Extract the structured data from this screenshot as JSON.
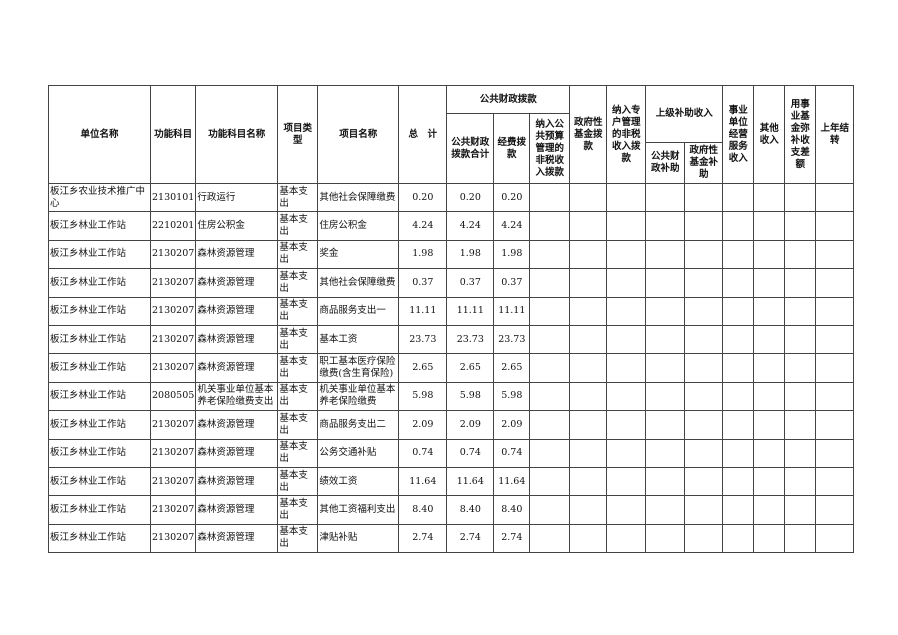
{
  "headers": {
    "unit_name": "单位名称",
    "func_code": "功能科目",
    "func_name": "功能科目名称",
    "item_type": "项目类型",
    "item_name": "项目名称",
    "total": "总　计",
    "public_finance": "公共财政拨款",
    "public_finance_total": "公共财政拨款合计",
    "funding": "经费拨款",
    "non_tax_budget": "纳入公共预算管理的非税收入拨款",
    "gov_fund": "政府性基金拨款",
    "special_non_tax": "纳入专户管理的非税收入拨款",
    "superior_subsidy": "上级补助收入",
    "superior_public": "公共财政补助",
    "superior_gov_fund": "政府性基金补助",
    "business_income": "事业单位经营服务收入",
    "other_income": "其他收入",
    "fund_balance": "用事业基金弥补收支差额",
    "last_year": "上年结转"
  },
  "rows": [
    {
      "unit": "板江乡农业技术推广中心",
      "code": "2130101",
      "func": "行政运行",
      "type": "基本支出",
      "item": "其他社会保障缴费",
      "total": "0.20",
      "pf_total": "0.20",
      "funding": "0.20"
    },
    {
      "unit": "板江乡林业工作站",
      "code": "2210201",
      "func": "住房公积金",
      "type": "基本支出",
      "item": "住房公积金",
      "total": "4.24",
      "pf_total": "4.24",
      "funding": "4.24"
    },
    {
      "unit": "板江乡林业工作站",
      "code": "2130207",
      "func": "森林资源管理",
      "type": "基本支出",
      "item": "奖金",
      "total": "1.98",
      "pf_total": "1.98",
      "funding": "1.98"
    },
    {
      "unit": "板江乡林业工作站",
      "code": "2130207",
      "func": "森林资源管理",
      "type": "基本支出",
      "item": "其他社会保障缴费",
      "total": "0.37",
      "pf_total": "0.37",
      "funding": "0.37"
    },
    {
      "unit": "板江乡林业工作站",
      "code": "2130207",
      "func": "森林资源管理",
      "type": "基本支出",
      "item": "商品服务支出一",
      "total": "11.11",
      "pf_total": "11.11",
      "funding": "11.11"
    },
    {
      "unit": "板江乡林业工作站",
      "code": "2130207",
      "func": "森林资源管理",
      "type": "基本支出",
      "item": "基本工资",
      "total": "23.73",
      "pf_total": "23.73",
      "funding": "23.73"
    },
    {
      "unit": "板江乡林业工作站",
      "code": "2130207",
      "func": "森林资源管理",
      "type": "基本支出",
      "item": "职工基本医疗保险缴费(含生育保险)",
      "total": "2.65",
      "pf_total": "2.65",
      "funding": "2.65"
    },
    {
      "unit": "板江乡林业工作站",
      "code": "2080505",
      "func": "机关事业单位基本养老保险缴费支出",
      "type": "基本支出",
      "item": "机关事业单位基本养老保险缴费",
      "total": "5.98",
      "pf_total": "5.98",
      "funding": "5.98"
    },
    {
      "unit": "板江乡林业工作站",
      "code": "2130207",
      "func": "森林资源管理",
      "type": "基本支出",
      "item": "商品服务支出二",
      "total": "2.09",
      "pf_total": "2.09",
      "funding": "2.09"
    },
    {
      "unit": "板江乡林业工作站",
      "code": "2130207",
      "func": "森林资源管理",
      "type": "基本支出",
      "item": "公务交通补贴",
      "total": "0.74",
      "pf_total": "0.74",
      "funding": "0.74"
    },
    {
      "unit": "板江乡林业工作站",
      "code": "2130207",
      "func": "森林资源管理",
      "type": "基本支出",
      "item": "绩效工资",
      "total": "11.64",
      "pf_total": "11.64",
      "funding": "11.64"
    },
    {
      "unit": "板江乡林业工作站",
      "code": "2130207",
      "func": "森林资源管理",
      "type": "基本支出",
      "item": "其他工资福利支出",
      "total": "8.40",
      "pf_total": "8.40",
      "funding": "8.40"
    },
    {
      "unit": "板江乡林业工作站",
      "code": "2130207",
      "func": "森林资源管理",
      "type": "基本支出",
      "item": "津贴补贴",
      "total": "2.74",
      "pf_total": "2.74",
      "funding": "2.74"
    }
  ]
}
